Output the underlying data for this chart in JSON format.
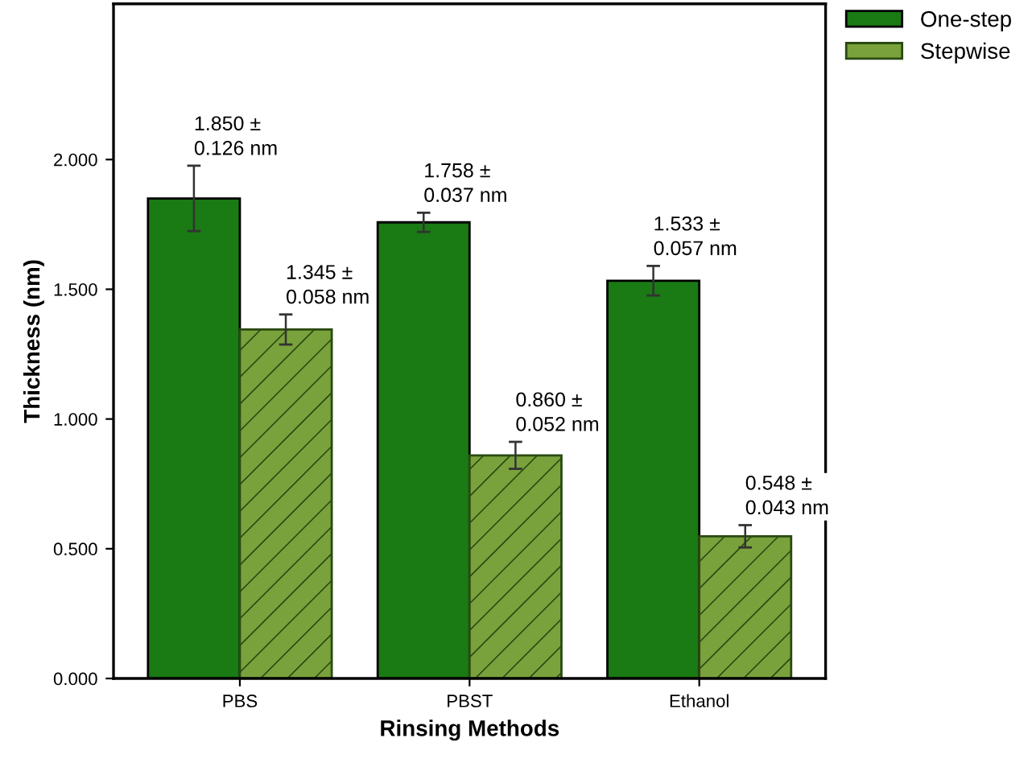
{
  "chart_data": {
    "type": "bar",
    "xlabel": "Rinsing Methods",
    "ylabel": "Thickness (nm)",
    "categories": [
      "PBS",
      "PBST",
      "Ethanol"
    ],
    "series": [
      {
        "name": "One-step",
        "color": "#1a7a14",
        "values": [
          1.85,
          1.758,
          1.533
        ],
        "errors": [
          0.126,
          0.037,
          0.057
        ],
        "value_labels": [
          "1.850 ±\n0.126 nm",
          "1.758 ±\n0.037 nm",
          "1.533 ±\n0.057 nm"
        ]
      },
      {
        "name": "Stepwise",
        "color": "#7aa23c",
        "values": [
          1.345,
          0.86,
          0.548
        ],
        "errors": [
          0.058,
          0.052,
          0.043
        ],
        "value_labels": [
          "1.345 ±\n0.058 nm",
          "0.860 ±\n0.052 nm",
          "0.548 ±\n0.043 nm"
        ]
      }
    ],
    "ylim": [
      0,
      2.6
    ],
    "yticks": [
      {
        "value": 0,
        "label": "0.000"
      },
      {
        "value": 0.5,
        "label": "0.500"
      },
      {
        "value": 1.0,
        "label": "1.000"
      },
      {
        "value": 1.5,
        "label": "1.500"
      },
      {
        "value": 2.0,
        "label": "2.000"
      }
    ],
    "grid": false,
    "legend": "top right"
  }
}
